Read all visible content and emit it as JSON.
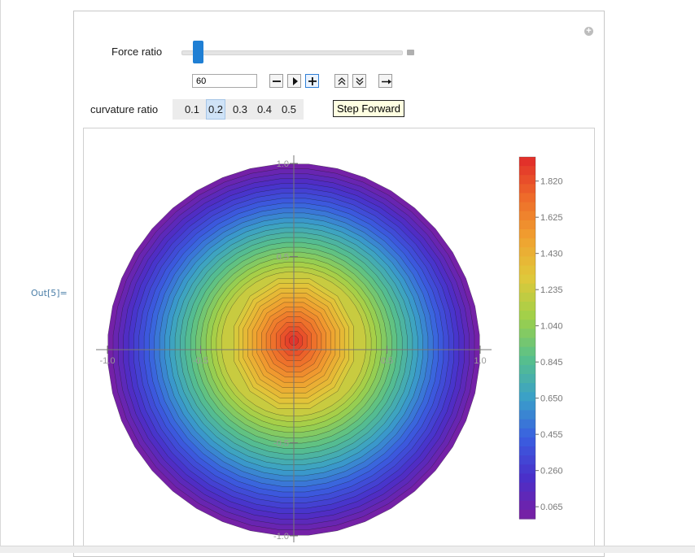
{
  "output_label": "Out[5]=",
  "controls": {
    "force_ratio_label": "Force ratio",
    "force_ratio_value": "60",
    "curvature_label": "curvature ratio",
    "curvature_options": [
      "0.1",
      "0.2",
      "0.3",
      "0.4",
      "0.5"
    ],
    "curvature_selected": "0.2",
    "tooltip": "Step Forward"
  },
  "chart_data": {
    "type": "contour",
    "title": "",
    "xlabel": "",
    "ylabel": "",
    "xlim": [
      -1.0,
      1.0
    ],
    "ylim": [
      -1.0,
      1.0
    ],
    "x_ticks": [
      "-1.0",
      "-0.5",
      "0.5",
      "1.0"
    ],
    "y_ticks": [
      "1.0",
      "0.5",
      "-0.5",
      "-1.0"
    ],
    "domain": "unit disk",
    "max_value": 1.95,
    "min_value": 0.0,
    "center_peak": [
      0.0,
      0.05
    ],
    "colorbar_ticks": [
      "1.820",
      "1.625",
      "1.430",
      "1.235",
      "1.040",
      "0.845",
      "0.650",
      "0.455",
      "0.260",
      "0.065"
    ],
    "colorbar_values": [
      1.82,
      1.625,
      1.43,
      1.235,
      1.04,
      0.845,
      0.65,
      0.455,
      0.26,
      0.065
    ],
    "colormap": [
      "#7a1fa2",
      "#4a2fc9",
      "#3a5ee0",
      "#3aa0c8",
      "#58c08a",
      "#9fd04a",
      "#e0c83a",
      "#f0a030",
      "#ee6a2a",
      "#e02a2a"
    ]
  }
}
